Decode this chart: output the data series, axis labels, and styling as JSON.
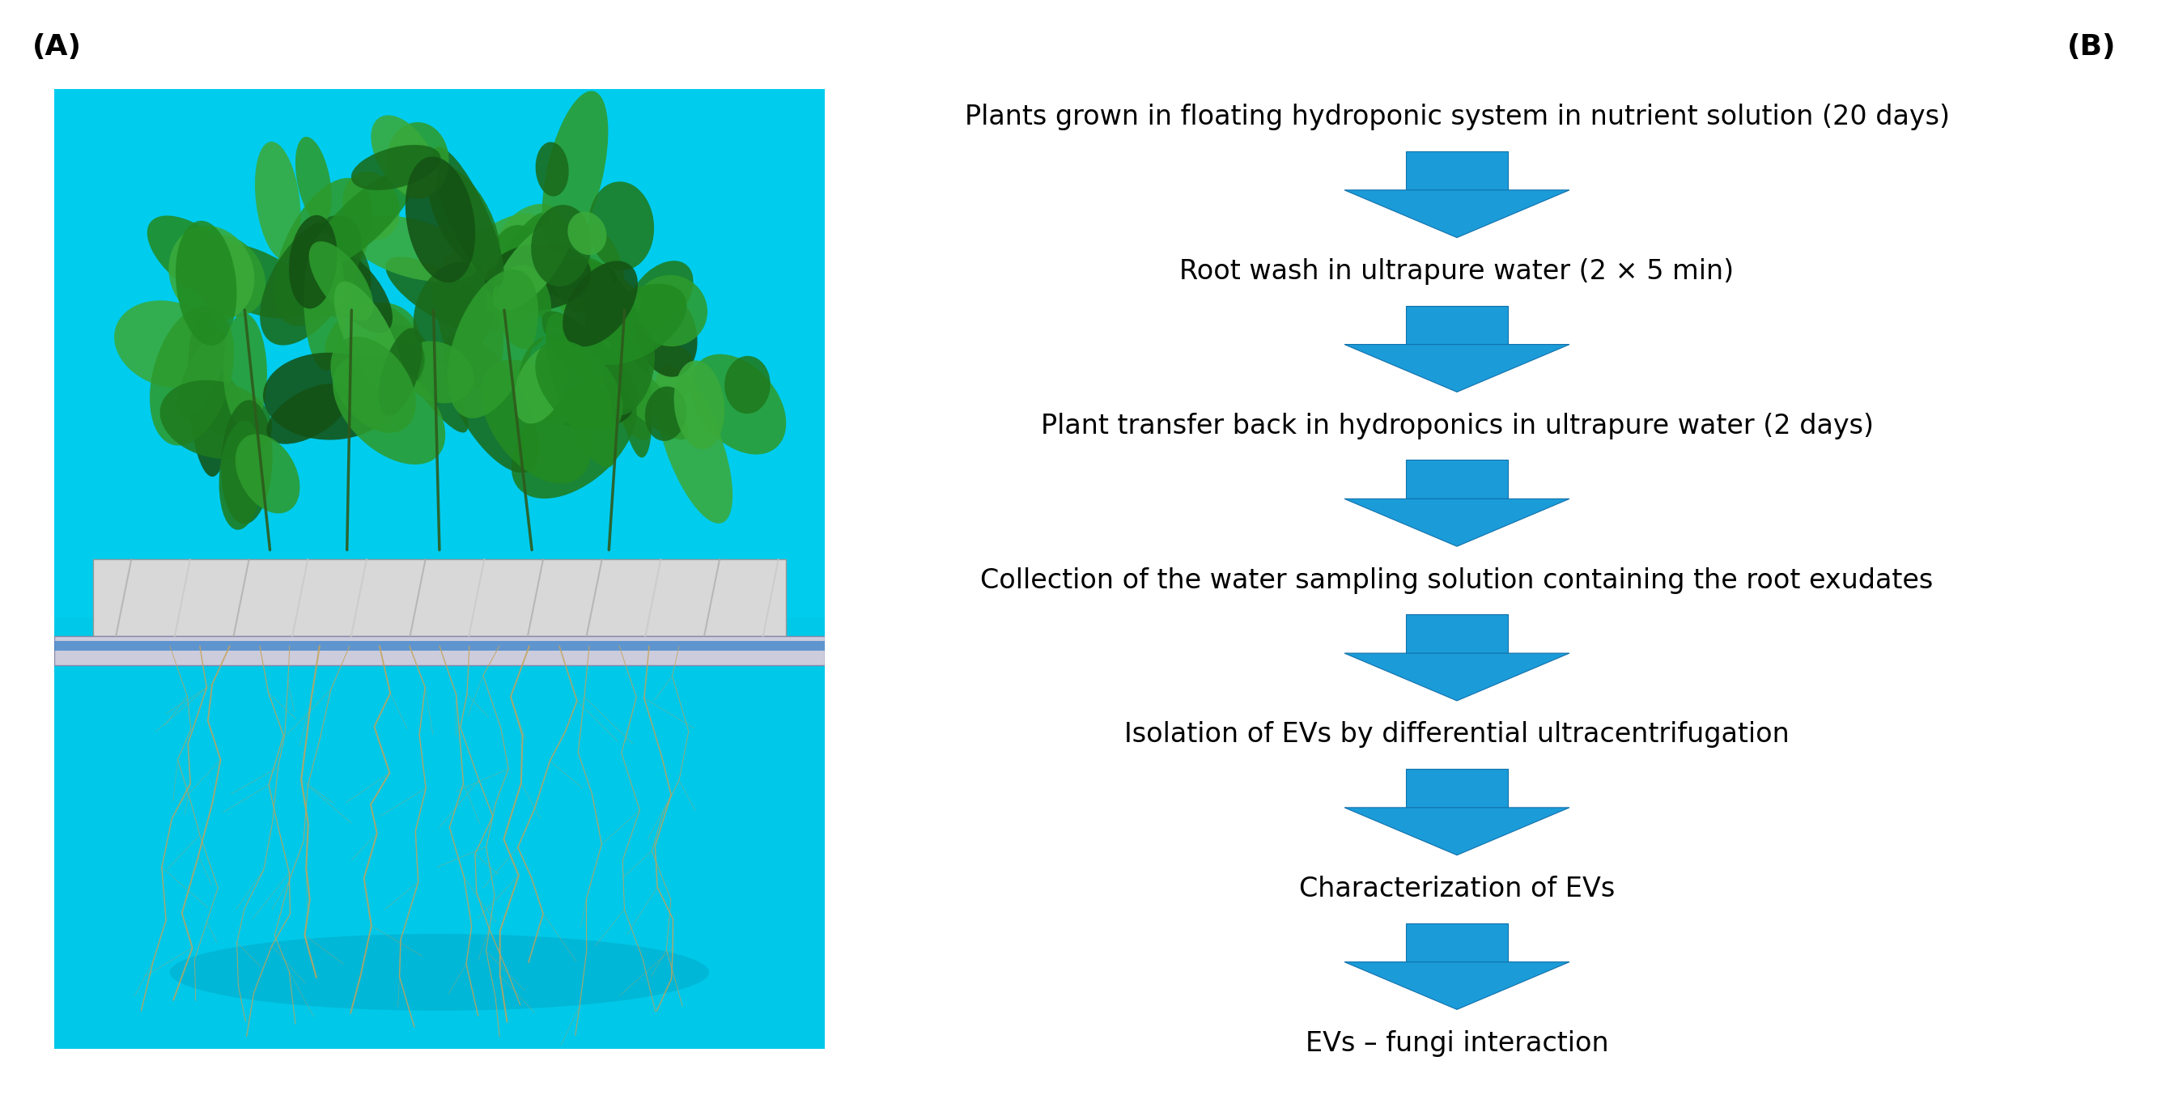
{
  "panel_a_label": "(A)",
  "panel_b_label": "(B)",
  "arrow_color": "#1B9CD9",
  "arrow_edge_color": "#1070AA",
  "text_color": "#000000",
  "background_color": "#ffffff",
  "flow_steps": [
    "Plants grown in floating hydroponic system in nutrient solution (20 days)",
    "Root wash in ultrapure water (2 × 5 min)",
    "Plant transfer back in hydroponics in ultrapure water (2 days)",
    "Collection of the water sampling solution containing the root exudates",
    "Isolation of EVs by differential ultracentrifugation",
    "Characterization of EVs",
    "EVs – fungi interaction"
  ],
  "label_fontsize": 26,
  "step_fontsize": 24,
  "fig_width": 26.81,
  "fig_height": 13.79,
  "cyan_bg": "#00C8E8",
  "cyan_light": "#00E5FF",
  "plant_green": "#228B22",
  "roots_color": "#C4A35A",
  "tray_color": "#C0C0C0",
  "foil_color": "#B8B8B8"
}
